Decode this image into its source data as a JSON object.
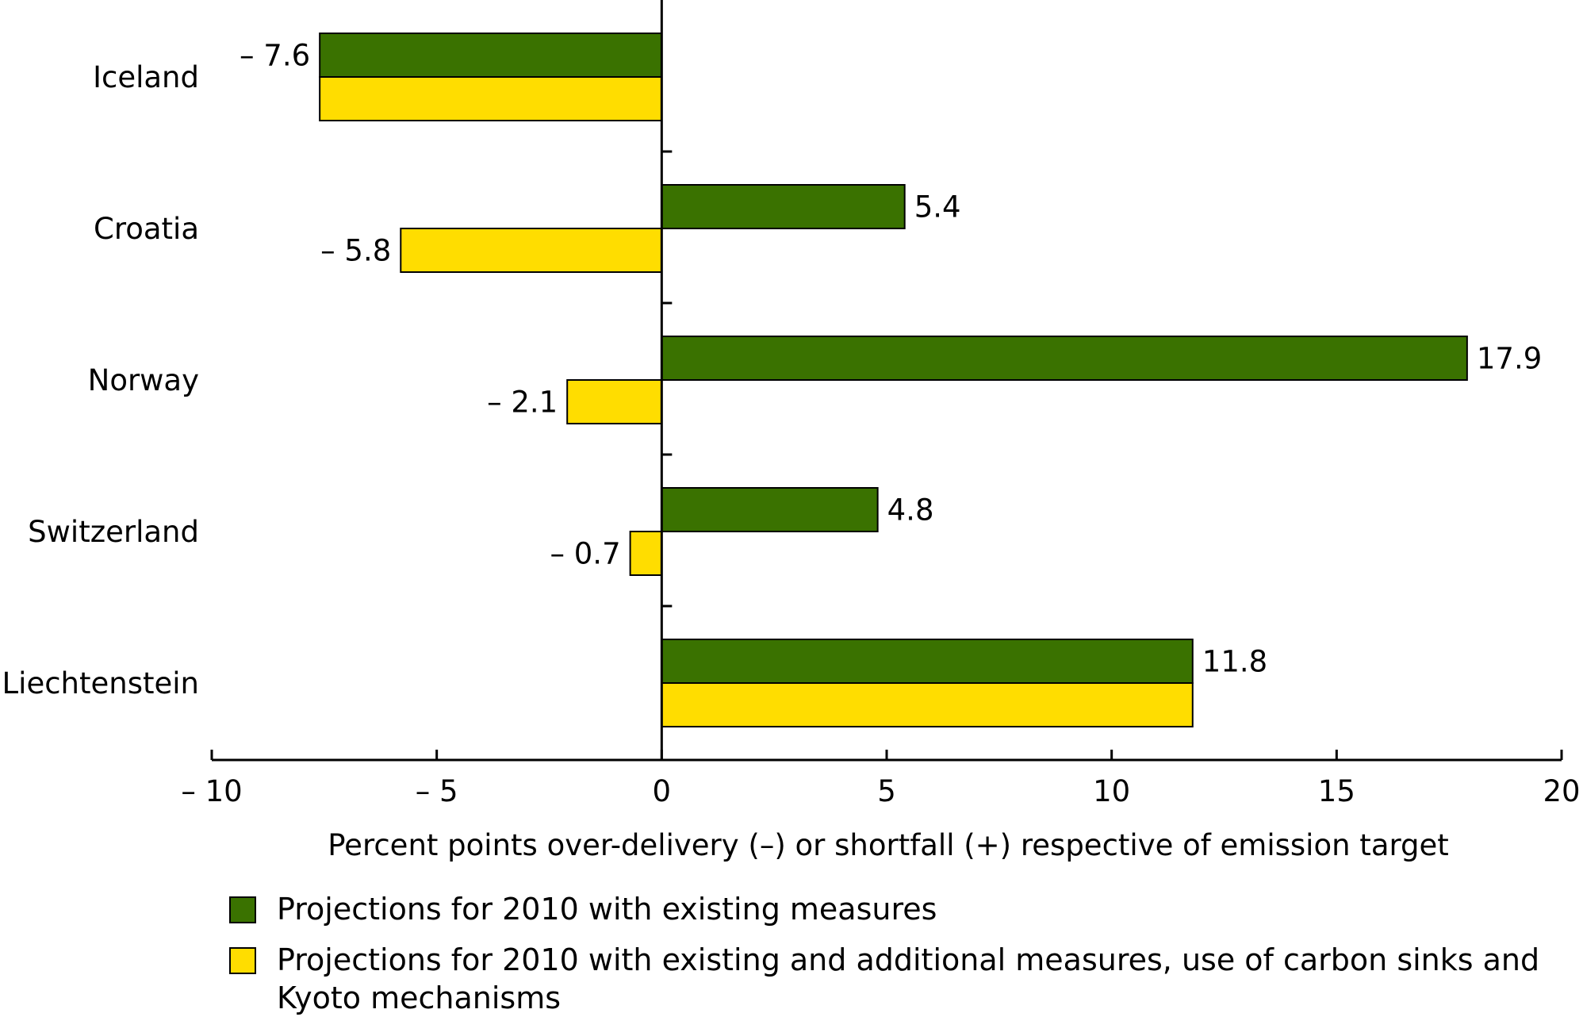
{
  "chart_data": {
    "type": "bar",
    "orientation": "horizontal",
    "categories": [
      "Iceland",
      "Croatia",
      "Norway",
      "Switzerland",
      "Liechtenstein"
    ],
    "series": [
      {
        "name": "Projections for 2010 with existing measures",
        "color": "#3a7200",
        "values": [
          -7.6,
          5.4,
          17.9,
          4.8,
          11.8
        ],
        "labels": [
          "– 7.6",
          "5.4",
          "17.9",
          "4.8",
          "11.8"
        ]
      },
      {
        "name": "Projections for 2010 with existing and additional measures, use of carbon sinks and Kyoto mechanisms",
        "color": "#ffdd00",
        "values": [
          -7.6,
          -5.8,
          -2.1,
          -0.7,
          11.8
        ],
        "labels": [
          "",
          "– 5.8",
          "– 2.1",
          "– 0.7",
          ""
        ]
      }
    ],
    "xlim": [
      -10,
      20
    ],
    "xticks": [
      -10,
      -5,
      0,
      5,
      10,
      15,
      20
    ],
    "xtick_labels": [
      "– 10",
      "– 5",
      "0",
      "5",
      "10",
      "15",
      "20"
    ],
    "xlabel": "Percent points over-delivery (–) or shortfall (+) respective of emission target",
    "ylabel": "",
    "title": "",
    "legend_position": "bottom-left",
    "grid": false
  }
}
